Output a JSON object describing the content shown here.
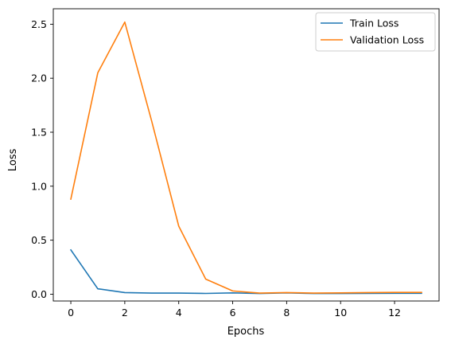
{
  "chart_data": {
    "type": "line",
    "title": "",
    "xlabel": "Epochs",
    "ylabel": "Loss",
    "xlim": [
      -0.65,
      13.65
    ],
    "ylim": [
      -0.0631,
      2.6431
    ],
    "xticks": [
      0,
      2,
      4,
      6,
      8,
      10,
      12
    ],
    "xtick_labels": [
      "0",
      "2",
      "4",
      "6",
      "8",
      "10",
      "12"
    ],
    "yticks": [
      0.0,
      0.5,
      1.0,
      1.5,
      2.0,
      2.5
    ],
    "ytick_labels": [
      "0.0",
      "0.5",
      "1.0",
      "1.5",
      "2.0",
      "2.5"
    ],
    "grid": false,
    "legend_position": "top-right",
    "x": [
      0,
      1,
      2,
      3,
      4,
      5,
      6,
      7,
      8,
      9,
      10,
      11,
      12,
      13
    ],
    "series": [
      {
        "name": "Train Loss",
        "color": "#1f77b4",
        "values": [
          0.41,
          0.05,
          0.015,
          0.01,
          0.01,
          0.007,
          0.012,
          0.006,
          0.012,
          0.006,
          0.006,
          0.007,
          0.008,
          0.008
        ]
      },
      {
        "name": "Validation Loss",
        "color": "#ff7f0e",
        "values": [
          0.88,
          2.05,
          2.52,
          1.6,
          0.63,
          0.14,
          0.03,
          0.01,
          0.015,
          0.01,
          0.012,
          0.015,
          0.017,
          0.017
        ]
      }
    ]
  }
}
